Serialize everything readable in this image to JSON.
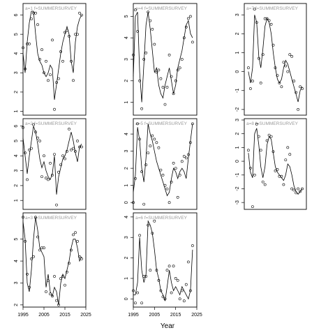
{
  "chart_data": {
    "type": "scatter",
    "xlabel": "Year",
    "xlim": [
      1995,
      2025
    ],
    "xticks": [
      1995,
      2005,
      2015,
      2025
    ],
    "panels": [
      {
        "label_prefix": "a=1",
        "label_text": "f=SUMMERSURVEY",
        "ylim": [
          0.8,
          6.6
        ],
        "yticks": [
          1,
          2,
          3,
          4,
          5,
          6
        ],
        "x_axis": false,
        "x": [
          1995,
          1996,
          1997,
          1998,
          1999,
          2000,
          2001,
          2002,
          2003,
          2004,
          2005,
          2006,
          2007,
          2008,
          2009,
          2010,
          2011,
          2012,
          2013,
          2014,
          2015,
          2016,
          2017,
          2018,
          2019,
          2020,
          2021,
          2022,
          2023
        ],
        "points": [
          4.3,
          3.2,
          4.5,
          4.5,
          5.8,
          6.1,
          6.1,
          5.5,
          3.7,
          4.2,
          3,
          3.6,
          2.6,
          2.9,
          4.7,
          1.1,
          2.5,
          2.7,
          4.1,
          3.6,
          5.1,
          5.2,
          4.9,
          3.6,
          2.6,
          5,
          5,
          6.1,
          6
        ],
        "fit": [
          4,
          3,
          4.6,
          5.6,
          6.2,
          6.2,
          5,
          4,
          3.6,
          3.4,
          3,
          2.8,
          3,
          3.4,
          3.2,
          1.6,
          2.4,
          3.2,
          4,
          4.6,
          5,
          5.4,
          5,
          3.6,
          3,
          4.6,
          5.4,
          5.8,
          6
        ]
      },
      {
        "label_prefix": "a=4",
        "label_text": "f=SUMMERSURVEY",
        "ylim": [
          0.4,
          5.6
        ],
        "yticks": [
          1,
          2,
          3,
          4,
          5
        ],
        "x_axis": false,
        "x": [
          1995,
          1996,
          1997,
          1998,
          1999,
          2000,
          2001,
          2002,
          2003,
          2004,
          2005,
          2006,
          2007,
          2008,
          2009,
          2010,
          2011,
          2012,
          2013,
          2014,
          2015,
          2016,
          2017,
          2018,
          2019,
          2020,
          2021,
          2022,
          2023
        ],
        "points": [
          3.2,
          5.3,
          4.3,
          2,
          0.7,
          3,
          3.3,
          5.2,
          4.8,
          4.4,
          3.7,
          2.4,
          2.5,
          2.1,
          1.7,
          0.9,
          1.7,
          3.2,
          2.2,
          1.4,
          2,
          2.5,
          2.6,
          3,
          4,
          4.5,
          4.9,
          5,
          3.8
        ],
        "fit": [
          2.2,
          5,
          5.2,
          2.4,
          1,
          2.8,
          4.6,
          5.2,
          4.4,
          3.4,
          2.4,
          2.6,
          1.8,
          1.4,
          1.2,
          1.8,
          2.2,
          2.6,
          2,
          1.4,
          1.8,
          2.6,
          3,
          3.4,
          4,
          4.6,
          4.8,
          4.2,
          4
        ]
      },
      {
        "label_prefix": "a=7",
        "label_text": "f=SUMMERSURVEY",
        "ylim": [
          -2.3,
          3.6
        ],
        "yticks": [
          -2,
          -1,
          0,
          1,
          2,
          3
        ],
        "x_axis": false,
        "x": [
          1997,
          1998,
          1999,
          2000,
          2001,
          2002,
          2003,
          2004,
          2005,
          2006,
          2007,
          2008,
          2009,
          2010,
          2011,
          2012,
          2013,
          2014,
          2015,
          2016,
          2017,
          2018,
          2019,
          2020,
          2021,
          2022,
          2023
        ],
        "points": [
          0.2,
          -0.9,
          -0.5,
          3.3,
          2.6,
          0.7,
          -0.6,
          0.9,
          2.8,
          2.8,
          2.7,
          2.5,
          1.4,
          0.2,
          -0.2,
          -0.6,
          -0.8,
          0.5,
          0.3,
          0,
          0.9,
          0.8,
          -0.5,
          -1.1,
          -2,
          -0.8,
          -0.9
        ],
        "fit": [
          0,
          -0.6,
          0.2,
          3,
          2.6,
          0.8,
          0.2,
          1.2,
          2.4,
          2.8,
          2.6,
          2,
          1,
          0.2,
          -0.4,
          -0.6,
          -0.4,
          0.2,
          0.6,
          0.4,
          0,
          -0.4,
          -0.8,
          -1.2,
          -1.6,
          -1,
          -0.8
        ]
      },
      {
        "label_prefix": "a=2",
        "label_text": "f=SUMMERSURVEY",
        "ylim": [
          0.4,
          6.5
        ],
        "yticks": [
          1,
          2,
          3,
          4,
          5,
          6
        ],
        "x_axis": false,
        "x": [
          1995,
          1996,
          1997,
          1998,
          1999,
          2000,
          2001,
          2002,
          2003,
          2004,
          2005,
          2006,
          2007,
          2008,
          2009,
          2010,
          2011,
          2012,
          2013,
          2014,
          2015,
          2016,
          2017,
          2018,
          2019,
          2020,
          2021,
          2022,
          2023
        ],
        "points": [
          5.9,
          4.2,
          2.4,
          4.4,
          4.5,
          6.1,
          5.6,
          5.2,
          5,
          2.6,
          4,
          2.5,
          2.4,
          3.5,
          2.7,
          4.1,
          0.7,
          2.9,
          3.4,
          4,
          3.8,
          4.3,
          5.8,
          4.4,
          4.5,
          4.3,
          5,
          4.6,
          4.6
        ],
        "fit": [
          5.2,
          4,
          2.8,
          4,
          5,
          6,
          5.6,
          4.8,
          3.8,
          3.2,
          3.6,
          3,
          2.6,
          2.4,
          2.8,
          4,
          1.4,
          2.6,
          3.2,
          3.8,
          4,
          4.4,
          5,
          5.6,
          5,
          4.2,
          3.6,
          4.6,
          4.8
        ]
      },
      {
        "label_prefix": "a=5",
        "label_text": "f=SUMMERSURVEY",
        "ylim": [
          -0.4,
          4.9
        ],
        "yticks": [
          0,
          1,
          2,
          3,
          4
        ],
        "x_axis": false,
        "x": [
          1995,
          1996,
          1997,
          1998,
          1999,
          2000,
          2001,
          2002,
          2003,
          2004,
          2005,
          2006,
          2007,
          2008,
          2009,
          2010,
          2011,
          2012,
          2013,
          2014,
          2015,
          2016,
          2017,
          2018,
          2019,
          2020,
          2021,
          2022,
          2023
        ],
        "points": [
          0,
          1.4,
          4.6,
          3.7,
          1.8,
          -0.1,
          2.2,
          2.9,
          3.3,
          3.9,
          3.7,
          3.5,
          3.2,
          1.9,
          1.6,
          1,
          0.8,
          0,
          1.2,
          2.3,
          2,
          0.3,
          1.6,
          2.4,
          2.7,
          2.6,
          2.8,
          3.5,
          4.6
        ],
        "fit": [
          0.6,
          1.6,
          4.4,
          3.6,
          2,
          1.2,
          2.6,
          4.6,
          4,
          3.6,
          3,
          2.4,
          2,
          1.6,
          1.2,
          0.8,
          0.4,
          0.6,
          1.4,
          2,
          1.8,
          1.4,
          1.8,
          2,
          1.8,
          1.4,
          2.6,
          3.6,
          4.6
        ]
      },
      {
        "label_prefix": "a=8",
        "label_text": "f=SUMMERSURVEY",
        "ylim": [
          -3.5,
          3.1
        ],
        "yticks": [
          -3,
          -2,
          -1,
          0,
          1,
          2,
          3
        ],
        "x_axis": false,
        "x": [
          1997,
          1998,
          1999,
          2000,
          2001,
          2002,
          2003,
          2004,
          2005,
          2006,
          2007,
          2008,
          2009,
          2010,
          2011,
          2012,
          2013,
          2014,
          2015,
          2016,
          2017,
          2018,
          2019,
          2020,
          2021,
          2022,
          2023
        ],
        "points": [
          0.8,
          -0.5,
          -3.3,
          -1,
          2.7,
          1.8,
          0.8,
          -1.5,
          -1.7,
          1.5,
          1.9,
          1.8,
          0.7,
          -0.7,
          -0.6,
          -1.1,
          -1.1,
          -1.7,
          0.1,
          1,
          0.5,
          -2,
          -2.1,
          -2.3,
          -2,
          -2.2,
          -2
        ],
        "fit": [
          0.6,
          -0.8,
          -1.2,
          2,
          2.4,
          1.2,
          -0.4,
          -1.2,
          -0.4,
          1.2,
          1.8,
          1.6,
          0.6,
          -0.4,
          -0.8,
          -1,
          -1.2,
          -1.4,
          -1,
          -0.2,
          -0.4,
          -1,
          -1.8,
          -2.2,
          -2.4,
          -2.2,
          -2
        ]
      },
      {
        "label_prefix": "a=3",
        "label_text": "f=SUMMERSURVEY",
        "ylim": [
          1.9,
          6.2
        ],
        "yticks": [
          2,
          3,
          4,
          5
        ],
        "x_axis": true,
        "x": [
          1995,
          1996,
          1997,
          1998,
          1999,
          2000,
          2001,
          2002,
          2003,
          2004,
          2005,
          2006,
          2007,
          2008,
          2009,
          2010,
          2011,
          2012,
          2013,
          2014,
          2015,
          2016,
          2017,
          2018,
          2019,
          2020,
          2021,
          2022,
          2023
        ],
        "points": [
          6,
          4.9,
          3.4,
          2.8,
          4.1,
          4.2,
          6,
          5.1,
          4.5,
          4.6,
          4.6,
          2.6,
          3.1,
          2.5,
          2.4,
          3.3,
          2.2,
          2,
          3.2,
          3.3,
          2.9,
          3.5,
          3.9,
          4.5,
          5.2,
          5.3,
          4.9,
          4.2,
          4.1
        ],
        "fit": [
          5.8,
          5,
          3,
          2.6,
          3.6,
          5,
          6,
          5.4,
          4.6,
          4.4,
          4.2,
          2.8,
          3.4,
          2.6,
          2.4,
          2.8,
          2.6,
          2,
          3,
          3.4,
          3.2,
          3.6,
          4,
          4.6,
          5,
          5,
          4.6,
          4,
          4.2
        ]
      },
      {
        "label_prefix": "a=6",
        "label_text": "f=SUMMERSURVEY",
        "ylim": [
          -0.4,
          4.2
        ],
        "yticks": [
          0,
          1,
          2,
          3,
          4
        ],
        "x_axis": true,
        "x": [
          1995,
          1996,
          1997,
          1998,
          1999,
          2000,
          2001,
          2002,
          2003,
          2004,
          2005,
          2006,
          2007,
          2008,
          2009,
          2010,
          2011,
          2012,
          2013,
          2014,
          2015,
          2016,
          2017,
          2018,
          2019,
          2020,
          2021,
          2022,
          2023
        ],
        "points": [
          0.4,
          -0.2,
          0.3,
          3.1,
          -0.2,
          1.1,
          1.1,
          3.6,
          1.4,
          3.2,
          3.8,
          1.4,
          0.9,
          0.4,
          0.1,
          0,
          1.4,
          1.6,
          0.3,
          1.6,
          1,
          0.9,
          0,
          0.4,
          -0.1,
          0.7,
          1.8,
          0.4,
          2.6
        ],
        "fit": [
          0.2,
          0.2,
          0.8,
          3,
          1.4,
          0.8,
          1.2,
          3.8,
          3.6,
          3.2,
          2.4,
          1.4,
          1,
          0.4,
          0.2,
          -0.1,
          0.6,
          1.4,
          0.8,
          0.4,
          0.6,
          0.4,
          0.2,
          0.6,
          0.4,
          0.2,
          0,
          0.4,
          2.4
        ]
      }
    ]
  }
}
